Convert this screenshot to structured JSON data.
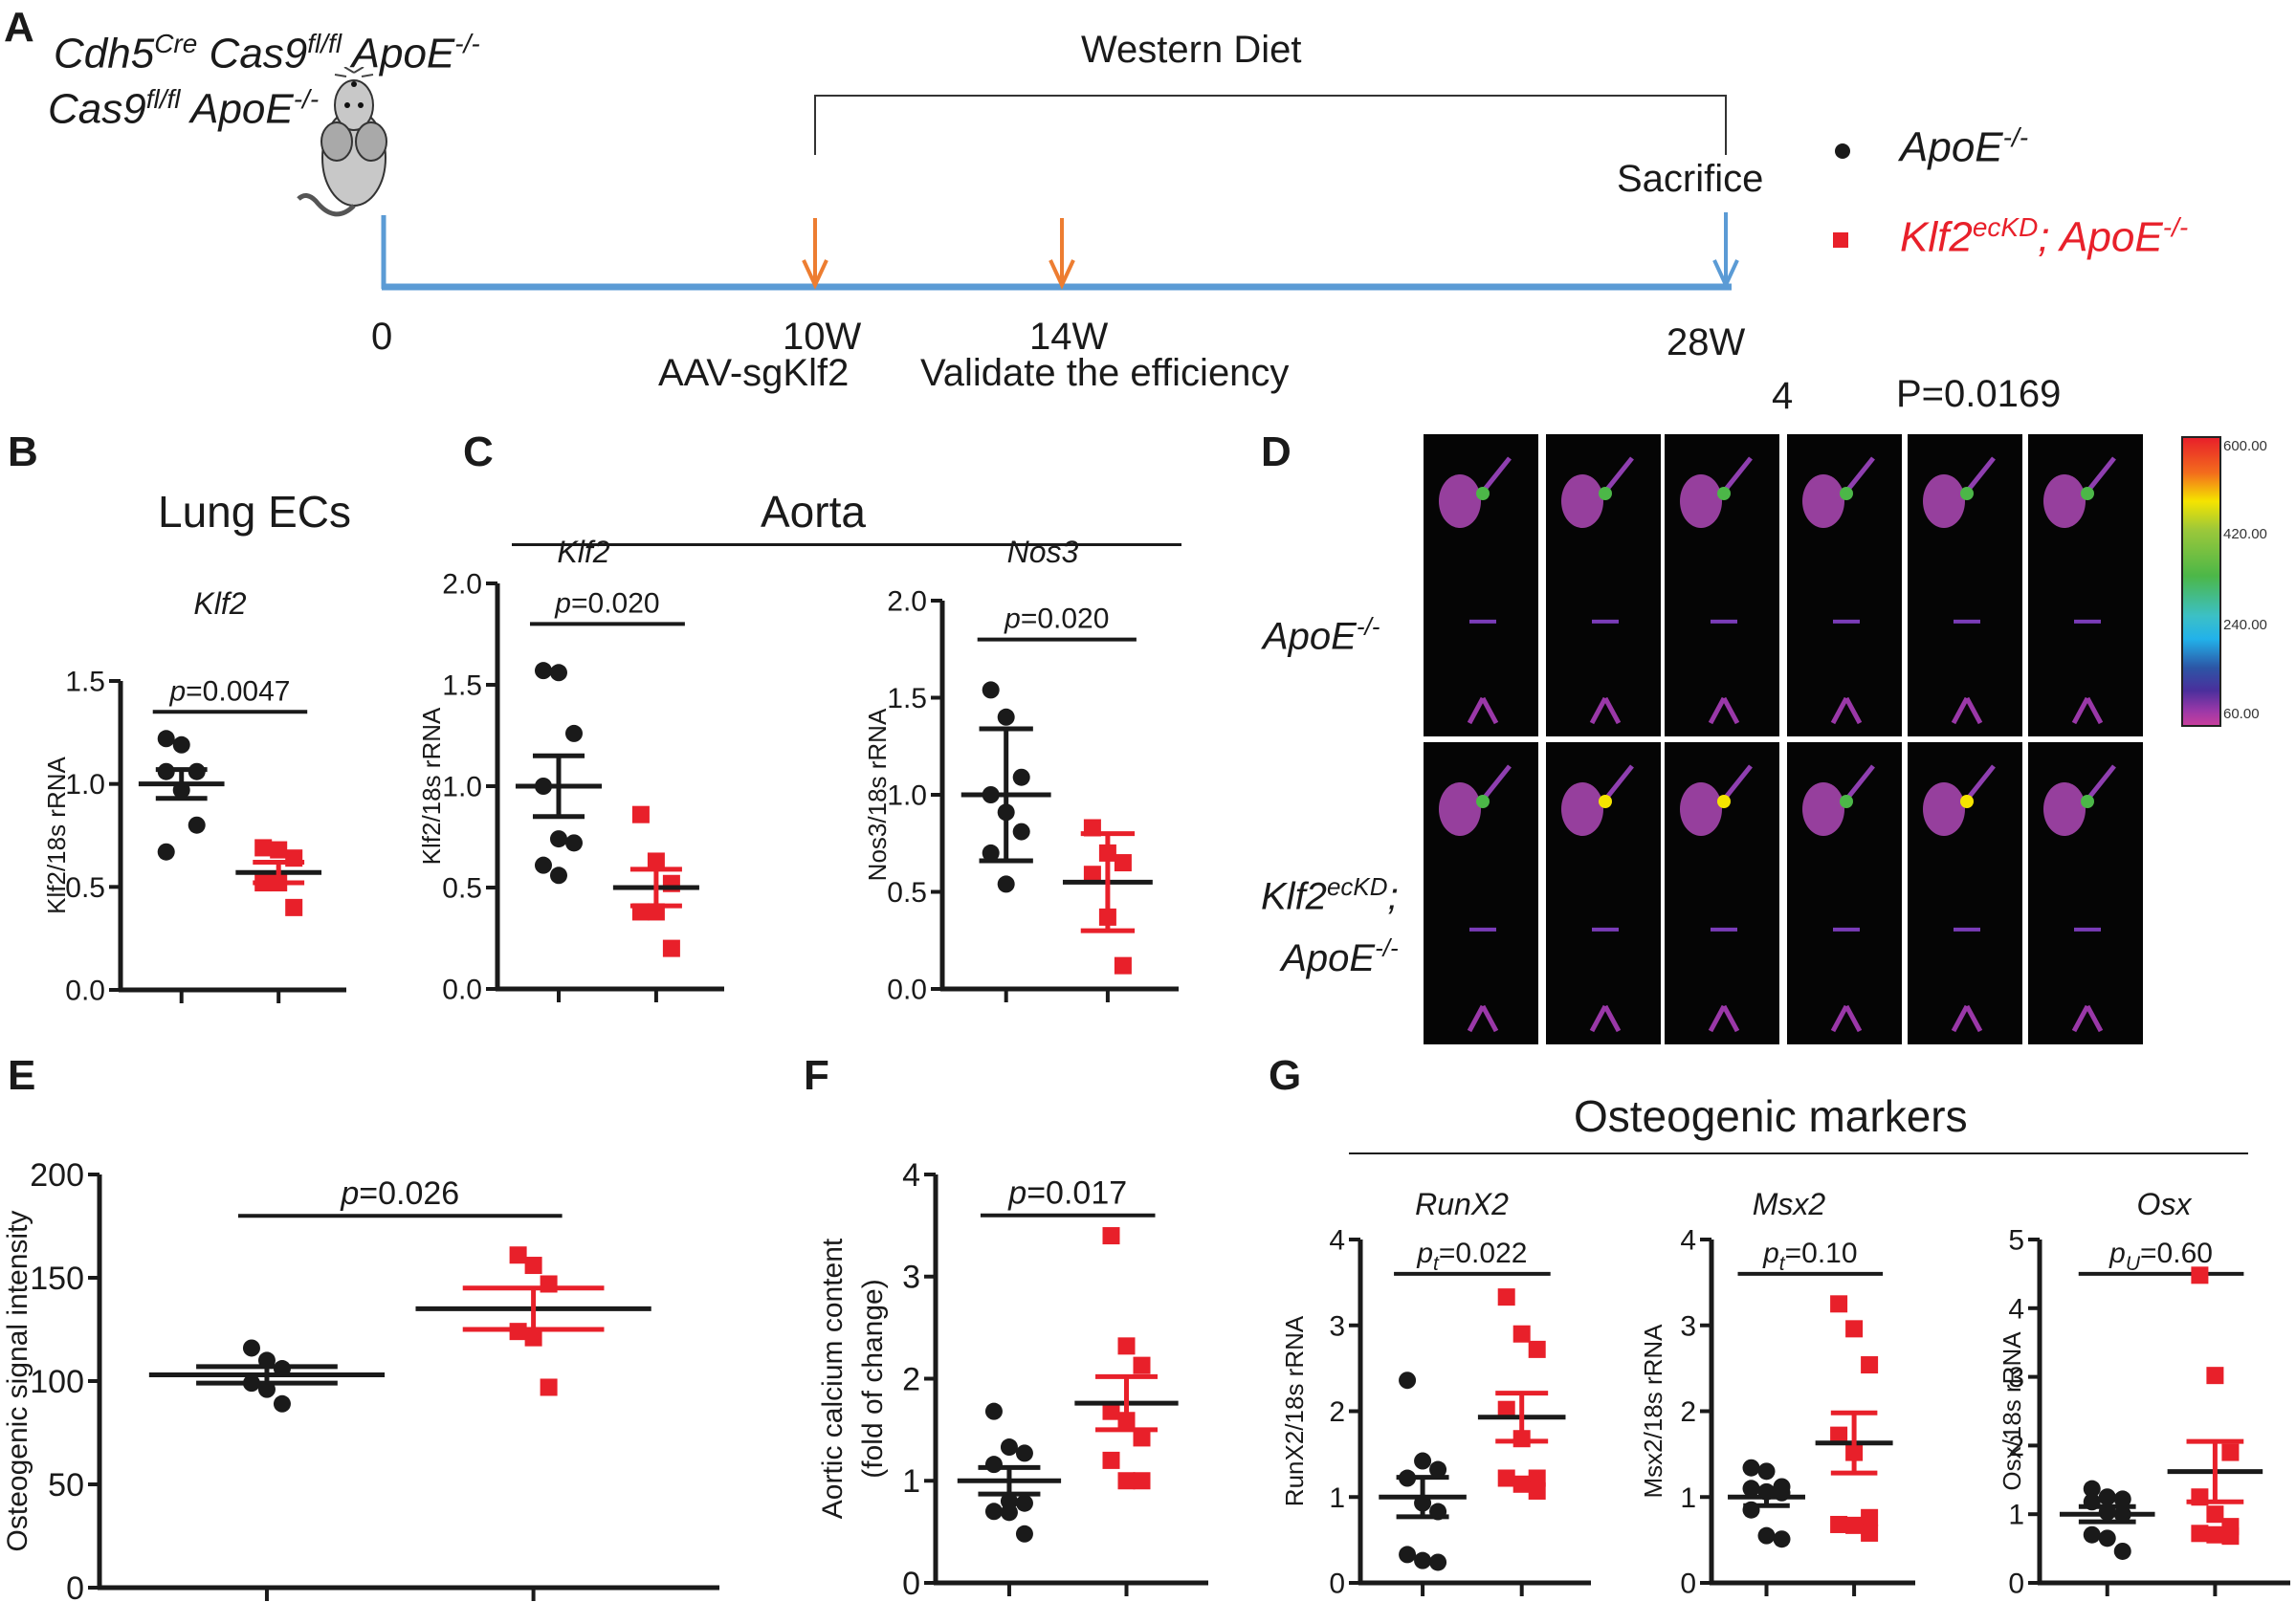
{
  "panel_labels": [
    "A",
    "B",
    "C",
    "D",
    "E",
    "F",
    "G"
  ],
  "panel_a": {
    "genotype_line1": {
      "parts": [
        {
          "t": "Cdh5",
          "sup": "Cre"
        },
        {
          "t": " Cas9",
          "sup": "fl/fl"
        },
        {
          "t": " ApoE",
          "sup": "-/-"
        }
      ]
    },
    "genotype_line2": {
      "parts": [
        {
          "t": "Cas9",
          "sup": "fl/fl"
        },
        {
          "t": " ApoE",
          "sup": "-/-"
        }
      ]
    },
    "diet_label": "Western Diet",
    "sacrifice_label": "Sacrifice",
    "timepoints": [
      {
        "label": "0",
        "note": ""
      },
      {
        "label": "10W",
        "note": "AAV-sgKlf2"
      },
      {
        "label": "14W",
        "note": "Validate the efficiency"
      },
      {
        "label": "28W",
        "note": ""
      }
    ],
    "timeline_color": "#5b9bd5",
    "arrow_color": "#ed7d31",
    "stray_text": [
      "4",
      "P=0.0169"
    ]
  },
  "legend": [
    {
      "marker": "circle",
      "label": "ApoE",
      "sup": "-/-",
      "color": "#1a1a1a"
    },
    {
      "marker": "square",
      "label": "Klf2",
      "sup": "ecKD",
      "label2": "; ApoE",
      "sup2": "-/-",
      "color": "#e8202a"
    }
  ],
  "panel_b": {
    "section_title": "Lung ECs"
  },
  "panel_c": {
    "section_title": "Aorta"
  },
  "panel_d": {
    "row_labels": [
      {
        "text": "ApoE",
        "sup": "-/-"
      },
      {
        "text": "Klf2",
        "sup": "ecKD",
        "tail": ";",
        "text2": "ApoE",
        "sup2": "-/-"
      }
    ],
    "colorbar_ticks": [
      "600.00",
      "420.00",
      "240.00",
      "60.00"
    ],
    "tiles_per_row": 6
  },
  "panel_g": {
    "section_title": "Osteogenic markers"
  },
  "colors": {
    "group1": "#1a1a1a",
    "group2": "#e8202a",
    "axis": "#1a1a1a"
  },
  "chart_data": [
    {
      "id": "B",
      "type": "scatter",
      "title": "Klf2",
      "ylabel": "Klf2/18s rRNA",
      "ylim": [
        0,
        1.5
      ],
      "yticks": [
        "0.0",
        "0.5",
        "1.0",
        "1.5"
      ],
      "pvalue": {
        "prefix": "p",
        "sub": "",
        "text": "=0.0047"
      },
      "series": [
        {
          "name": "ApoE-/-",
          "values": [
            1.22,
            1.19,
            1.06,
            1.06,
            0.97,
            0.8,
            0.67
          ],
          "mean": 1.0,
          "err": 0.07
        },
        {
          "name": "Klf2ecKD; ApoE-/-",
          "values": [
            0.69,
            0.68,
            0.64,
            0.52,
            0.52,
            0.4
          ],
          "mean": 0.57,
          "err": 0.05
        }
      ]
    },
    {
      "id": "C1",
      "type": "scatter",
      "title": "Klf2",
      "ylabel": "Klf2/18s rRNA",
      "ylim": [
        0,
        2.0
      ],
      "yticks": [
        "0.0",
        "0.5",
        "1.0",
        "1.5",
        "2.0"
      ],
      "pvalue": {
        "prefix": "p",
        "sub": "",
        "text": "=0.020"
      },
      "series": [
        {
          "name": "ApoE-/-",
          "values": [
            1.57,
            1.56,
            1.26,
            1.0,
            0.74,
            0.72,
            0.61,
            0.56
          ],
          "mean": 1.0,
          "err": 0.15
        },
        {
          "name": "Klf2ecKD; ApoE-/-",
          "values": [
            0.86,
            0.63,
            0.52,
            0.38,
            0.38,
            0.2
          ],
          "mean": 0.5,
          "err": 0.09
        }
      ]
    },
    {
      "id": "C2",
      "type": "scatter",
      "title": "Nos3",
      "ylabel": "Nos3/18s rRNA",
      "ylim": [
        0,
        2.0
      ],
      "yticks": [
        "0.0",
        "0.5",
        "1.0",
        "1.5",
        "2.0"
      ],
      "pvalue": {
        "prefix": "p",
        "sub": "",
        "text": "=0.020"
      },
      "series": [
        {
          "name": "ApoE-/-",
          "values": [
            1.54,
            1.4,
            1.09,
            1.0,
            0.91,
            0.81,
            0.7,
            0.54
          ],
          "mean": 1.0,
          "err": 0.34
        },
        {
          "name": "Klf2ecKD; ApoE-/-",
          "values": [
            0.83,
            0.7,
            0.65,
            0.59,
            0.37,
            0.12
          ],
          "mean": 0.55,
          "err": 0.25
        }
      ]
    },
    {
      "id": "E",
      "type": "scatter",
      "title": "",
      "ylabel": "Osteogenic signal intensity",
      "ylim": [
        0,
        200
      ],
      "yticks": [
        "0",
        "50",
        "100",
        "150",
        "200"
      ],
      "pvalue": {
        "prefix": "p",
        "sub": "",
        "text": "=0.026"
      },
      "series": [
        {
          "name": "ApoE-/-",
          "values": [
            116,
            110,
            106,
            99,
            96,
            89
          ],
          "mean": 103,
          "err": 4
        },
        {
          "name": "Klf2ecKD; ApoE-/-",
          "values": [
            161,
            156,
            147,
            124,
            121,
            97
          ],
          "mean": 135,
          "err": 10
        }
      ]
    },
    {
      "id": "F",
      "type": "scatter",
      "title": "",
      "ylabel": "Aortic calcium content",
      "ylabel2": "(fold of change)",
      "ylim": [
        0,
        4
      ],
      "yticks": [
        "0",
        "1",
        "2",
        "3",
        "4"
      ],
      "pvalue": {
        "prefix": "p",
        "sub": "",
        "text": "=0.017"
      },
      "series": [
        {
          "name": "ApoE-/-",
          "values": [
            1.68,
            1.33,
            1.27,
            1.16,
            0.8,
            0.78,
            0.7,
            0.69,
            0.48
          ],
          "mean": 1.0,
          "err": 0.13
        },
        {
          "name": "Klf2ecKD; ApoE-/-",
          "values": [
            3.4,
            2.32,
            2.13,
            1.68,
            1.59,
            1.42,
            1.2,
            1.0,
            1.0
          ],
          "mean": 1.76,
          "err": 0.26
        }
      ]
    },
    {
      "id": "G1",
      "type": "scatter",
      "title": "RunX2",
      "ylabel": "RunX2/18s rRNA",
      "ylim": [
        0,
        4
      ],
      "yticks": [
        "0",
        "1",
        "2",
        "3",
        "4"
      ],
      "pvalue": {
        "prefix": "p",
        "sub": "t",
        "text": "=0.022"
      },
      "series": [
        {
          "name": "ApoE-/-",
          "values": [
            2.36,
            1.42,
            1.32,
            1.22,
            0.93,
            0.83,
            0.33,
            0.26,
            0.24
          ],
          "mean": 1.0,
          "err": 0.23
        },
        {
          "name": "Klf2ecKD; ApoE-/-",
          "values": [
            3.33,
            2.9,
            2.72,
            2.02,
            1.68,
            1.22,
            1.22,
            1.15,
            1.07
          ],
          "mean": 1.93,
          "err": 0.28
        }
      ]
    },
    {
      "id": "G2",
      "type": "scatter",
      "title": "Msx2",
      "ylabel": "Msx2/18s rRNA",
      "ylim": [
        0,
        4
      ],
      "yticks": [
        "0",
        "1",
        "2",
        "3",
        "4"
      ],
      "pvalue": {
        "prefix": "p",
        "sub": "t",
        "text": "=0.10"
      },
      "series": [
        {
          "name": "ApoE-/-",
          "values": [
            1.34,
            1.3,
            1.12,
            1.1,
            1.06,
            1.05,
            0.85,
            0.55,
            0.51
          ],
          "mean": 1.0,
          "err": 0.1
        },
        {
          "name": "Klf2ecKD; ApoE-/-",
          "values": [
            3.25,
            2.96,
            2.54,
            1.72,
            1.52,
            0.76,
            0.68,
            0.67,
            0.58
          ],
          "mean": 1.63,
          "err": 0.35
        }
      ]
    },
    {
      "id": "G3",
      "type": "scatter",
      "title": "Osx",
      "ylabel": "Osx/18s rRNA",
      "ylim": [
        0,
        5
      ],
      "yticks": [
        "0",
        "1",
        "2",
        "3",
        "4",
        "5"
      ],
      "pvalue": {
        "prefix": "p",
        "sub": "U",
        "text": "=0.60"
      },
      "series": [
        {
          "name": "ApoE-/-",
          "values": [
            1.37,
            1.25,
            1.22,
            1.18,
            1.03,
            1.0,
            0.7,
            0.65,
            0.46
          ],
          "mean": 1.0,
          "err": 0.11
        },
        {
          "name": "Klf2ecKD; ApoE-/-",
          "values": [
            4.48,
            3.02,
            1.9,
            1.25,
            1.0,
            0.82,
            0.72,
            0.7,
            0.68
          ],
          "mean": 1.62,
          "err": 0.44
        }
      ]
    }
  ]
}
